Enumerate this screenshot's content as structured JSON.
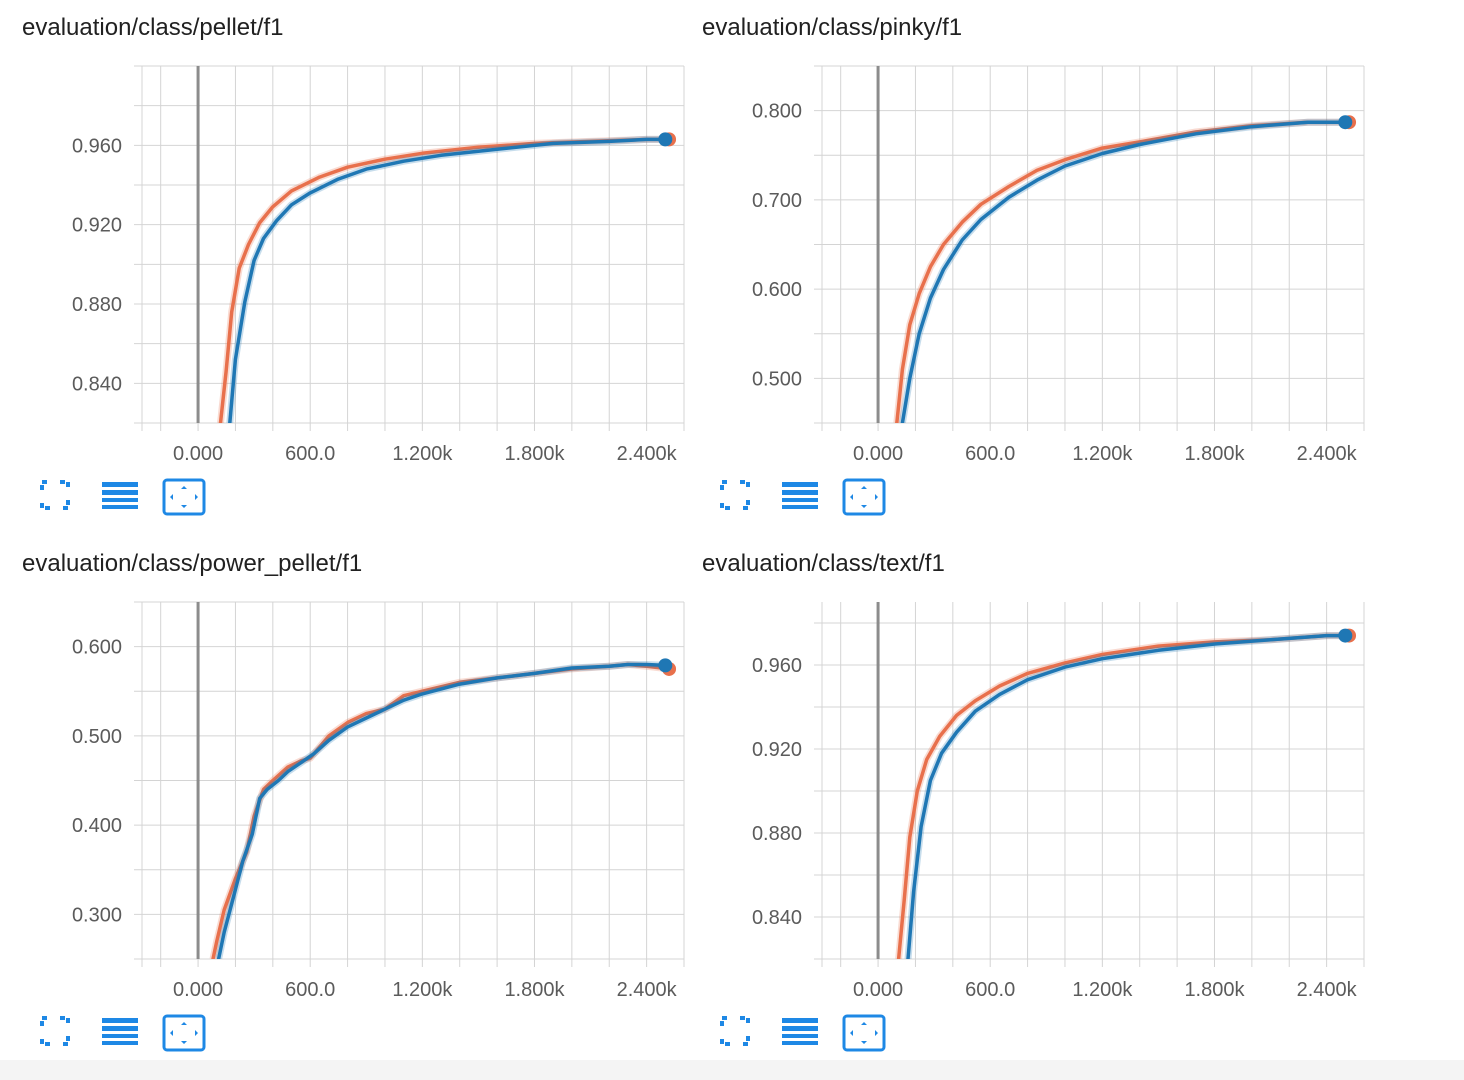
{
  "chart_data": [
    {
      "type": "line",
      "title": "evaluation/class/pellet/f1",
      "xlim": [
        -300,
        2600
      ],
      "ylim": [
        0.82,
        1.0
      ],
      "xticks": [
        0,
        600,
        1200,
        1800,
        2400
      ],
      "xtick_labels": [
        "0.000",
        "600.0",
        "1.200k",
        "1.800k",
        "2.400k"
      ],
      "yticks": [
        0.84,
        0.88,
        0.92,
        0.96
      ],
      "ytick_labels": [
        "0.840",
        "0.880",
        "0.920",
        "0.960"
      ],
      "series": [
        {
          "name": "run-orange",
          "color": "#e8704c",
          "x": [
            120,
            150,
            180,
            220,
            270,
            330,
            400,
            500,
            650,
            800,
            1000,
            1200,
            1500,
            1800,
            2100,
            2400,
            2520
          ],
          "y": [
            0.82,
            0.846,
            0.876,
            0.898,
            0.91,
            0.921,
            0.929,
            0.937,
            0.944,
            0.949,
            0.953,
            0.956,
            0.959,
            0.961,
            0.962,
            0.963,
            0.963
          ]
        },
        {
          "name": "run-blue",
          "color": "#1f77b4",
          "x": [
            170,
            200,
            250,
            300,
            350,
            420,
            500,
            600,
            750,
            900,
            1100,
            1300,
            1600,
            1900,
            2200,
            2400,
            2500
          ],
          "y": [
            0.82,
            0.852,
            0.881,
            0.902,
            0.913,
            0.922,
            0.93,
            0.936,
            0.943,
            0.948,
            0.952,
            0.955,
            0.958,
            0.961,
            0.962,
            0.963,
            0.963
          ]
        }
      ]
    },
    {
      "type": "line",
      "title": "evaluation/class/pinky/f1",
      "xlim": [
        -300,
        2600
      ],
      "ylim": [
        0.45,
        0.85
      ],
      "xticks": [
        0,
        600,
        1200,
        1800,
        2400
      ],
      "xtick_labels": [
        "0.000",
        "600.0",
        "1.200k",
        "1.800k",
        "2.400k"
      ],
      "yticks": [
        0.5,
        0.6,
        0.7,
        0.8
      ],
      "ytick_labels": [
        "0.500",
        "0.600",
        "0.700",
        "0.800"
      ],
      "series": [
        {
          "name": "run-orange",
          "color": "#e8704c",
          "x": [
            100,
            130,
            170,
            220,
            280,
            350,
            450,
            550,
            700,
            850,
            1000,
            1200,
            1400,
            1700,
            2000,
            2300,
            2520
          ],
          "y": [
            0.45,
            0.51,
            0.56,
            0.595,
            0.625,
            0.65,
            0.675,
            0.695,
            0.715,
            0.733,
            0.745,
            0.758,
            0.765,
            0.776,
            0.783,
            0.787,
            0.787
          ]
        },
        {
          "name": "run-blue",
          "color": "#1f77b4",
          "x": [
            130,
            170,
            220,
            280,
            350,
            450,
            550,
            700,
            850,
            1000,
            1200,
            1400,
            1700,
            2000,
            2300,
            2500
          ],
          "y": [
            0.45,
            0.5,
            0.55,
            0.59,
            0.622,
            0.655,
            0.678,
            0.703,
            0.722,
            0.738,
            0.752,
            0.762,
            0.774,
            0.782,
            0.787,
            0.787
          ]
        }
      ]
    },
    {
      "type": "line",
      "title": "evaluation/class/power_pellet/f1",
      "xlim": [
        -300,
        2600
      ],
      "ylim": [
        0.25,
        0.65
      ],
      "xticks": [
        0,
        600,
        1200,
        1800,
        2400
      ],
      "xtick_labels": [
        "0.000",
        "600.0",
        "1.200k",
        "1.800k",
        "2.400k"
      ],
      "yticks": [
        0.3,
        0.4,
        0.5,
        0.6
      ],
      "ytick_labels": [
        "0.300",
        "0.400",
        "0.500",
        "0.600"
      ],
      "series": [
        {
          "name": "run-orange",
          "color": "#e8704c",
          "x": [
            80,
            100,
            140,
            200,
            260,
            300,
            350,
            400,
            480,
            550,
            600,
            700,
            800,
            900,
            1000,
            1100,
            1200,
            1400,
            1600,
            1800,
            2000,
            2200,
            2300,
            2400,
            2520
          ],
          "y": [
            0.25,
            0.27,
            0.305,
            0.34,
            0.37,
            0.41,
            0.44,
            0.45,
            0.465,
            0.472,
            0.475,
            0.5,
            0.515,
            0.525,
            0.53,
            0.545,
            0.55,
            0.56,
            0.565,
            0.57,
            0.575,
            0.578,
            0.58,
            0.578,
            0.575
          ]
        },
        {
          "name": "run-blue",
          "color": "#1f77b4",
          "x": [
            110,
            140,
            190,
            240,
            290,
            330,
            370,
            430,
            480,
            550,
            620,
            700,
            800,
            900,
            1000,
            1100,
            1200,
            1400,
            1600,
            1800,
            2000,
            2200,
            2300,
            2400,
            2500
          ],
          "y": [
            0.25,
            0.28,
            0.32,
            0.36,
            0.39,
            0.43,
            0.44,
            0.45,
            0.46,
            0.47,
            0.48,
            0.495,
            0.51,
            0.52,
            0.53,
            0.54,
            0.547,
            0.558,
            0.565,
            0.57,
            0.576,
            0.578,
            0.58,
            0.58,
            0.579
          ]
        }
      ]
    },
    {
      "type": "line",
      "title": "evaluation/class/text/f1",
      "xlim": [
        -300,
        2600
      ],
      "ylim": [
        0.82,
        0.99
      ],
      "xticks": [
        0,
        600,
        1200,
        1800,
        2400
      ],
      "xtick_labels": [
        "0.000",
        "600.0",
        "1.200k",
        "1.800k",
        "2.400k"
      ],
      "yticks": [
        0.84,
        0.88,
        0.92,
        0.96
      ],
      "ytick_labels": [
        "0.840",
        "0.880",
        "0.920",
        "0.960"
      ],
      "series": [
        {
          "name": "run-orange",
          "color": "#e8704c",
          "x": [
            110,
            140,
            170,
            210,
            260,
            330,
            420,
            520,
            650,
            800,
            1000,
            1200,
            1500,
            1800,
            2100,
            2400,
            2520
          ],
          "y": [
            0.82,
            0.848,
            0.878,
            0.9,
            0.915,
            0.926,
            0.936,
            0.943,
            0.95,
            0.956,
            0.961,
            0.965,
            0.969,
            0.971,
            0.972,
            0.974,
            0.974
          ]
        },
        {
          "name": "run-blue",
          "color": "#1f77b4",
          "x": [
            160,
            190,
            230,
            280,
            340,
            420,
            520,
            650,
            800,
            1000,
            1200,
            1500,
            1800,
            2100,
            2400,
            2500
          ],
          "y": [
            0.82,
            0.852,
            0.883,
            0.905,
            0.918,
            0.928,
            0.938,
            0.946,
            0.953,
            0.959,
            0.963,
            0.967,
            0.97,
            0.972,
            0.974,
            0.974
          ]
        }
      ]
    }
  ]
}
